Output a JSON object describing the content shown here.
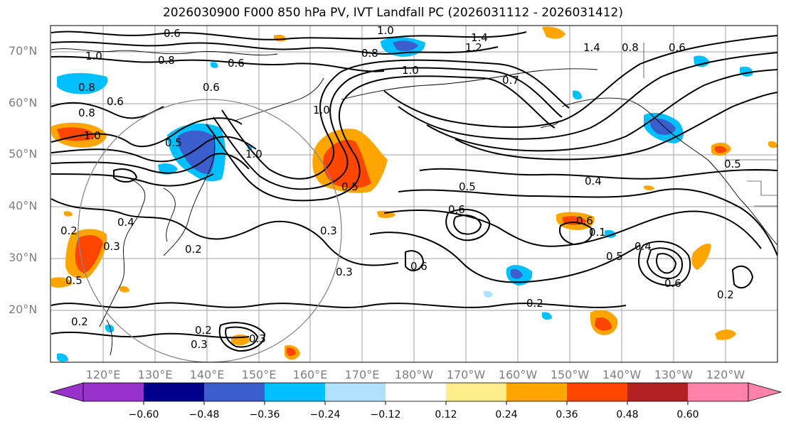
{
  "title": "2026030900 F000 850 hPa PV, IVT Landfall PC (2026031112 - 2026031412)",
  "lat_labels": [
    "70°N",
    "60°N",
    "50°N",
    "40°N",
    "30°N",
    "20°N"
  ],
  "lon_labels": [
    "120°E",
    "130°E",
    "140°E",
    "150°E",
    "160°E",
    "170°E",
    "180°W",
    "170°W",
    "160°W",
    "150°W",
    "140°W",
    "130°W",
    "120°W"
  ],
  "colorbar": {
    "ticks": [
      "−0.60",
      "−0.48",
      "−0.36",
      "−0.24",
      "−0.12",
      "0.12",
      "0.24",
      "0.36",
      "0.48",
      "0.60"
    ],
    "colors": [
      "#9932cc",
      "#00008b",
      "#3a5fcd",
      "#00bfff",
      "#b0e2ff",
      "#ffffff",
      "#ffec8b",
      "#ffa500",
      "#ff4500",
      "#b22222",
      "#ff82ab"
    ]
  },
  "contour_labels": [
    "0.6",
    "1.0",
    "0.8",
    "0.8",
    "0.6",
    "0.6",
    "0.8",
    "1.0",
    "0.6",
    "0.5",
    "0.2",
    "0.4",
    "0.3",
    "0.2",
    "0.5",
    "0.2",
    "1.0",
    "1.0",
    "0.5",
    "0.3",
    "0.3",
    "0.2",
    "0.3",
    "0.3",
    "1.0",
    "0.8",
    "1.2",
    "1.4",
    "1.4",
    "0.8",
    "1.0",
    "0.5",
    "0.4",
    "0.6",
    "0.7",
    "0.6",
    "0.6",
    "0.6",
    "0.1",
    "0.5",
    "0.4",
    "0.6",
    "0.5",
    "0.2",
    "0.2"
  ]
}
